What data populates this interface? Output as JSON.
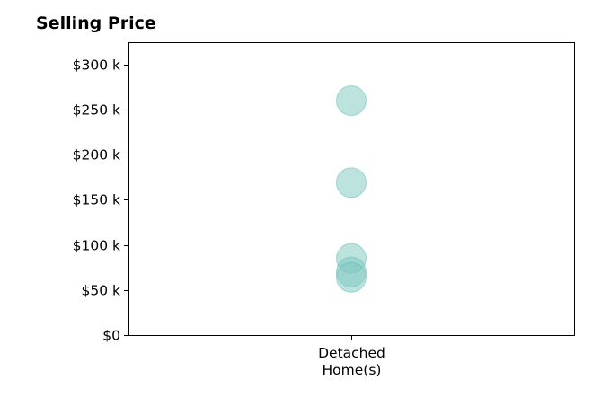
{
  "chart_data": {
    "type": "scatter",
    "title": "Selling Price",
    "xlabel": "",
    "ylabel": "",
    "categories": [
      "Detached\nHome(s)"
    ],
    "series": [
      {
        "category": "Detached\nHome(s)",
        "values": [
          260000,
          169000,
          85000,
          70000,
          64000
        ]
      }
    ],
    "ylim": [
      0,
      325000
    ],
    "yticks": [
      {
        "value": 0,
        "label": "$0"
      },
      {
        "value": 50000,
        "label": "$50 k"
      },
      {
        "value": 100000,
        "label": "$100 k"
      },
      {
        "value": 150000,
        "label": "$150 k"
      },
      {
        "value": 200000,
        "label": "$200 k"
      },
      {
        "value": 250000,
        "label": "$250 k"
      },
      {
        "value": 300000,
        "label": "$300 k"
      }
    ],
    "grid": false,
    "legend": "none",
    "marker_color": "#7cc8c0",
    "marker_edge_color": "#4fb3a9",
    "marker_opacity": 0.5
  }
}
